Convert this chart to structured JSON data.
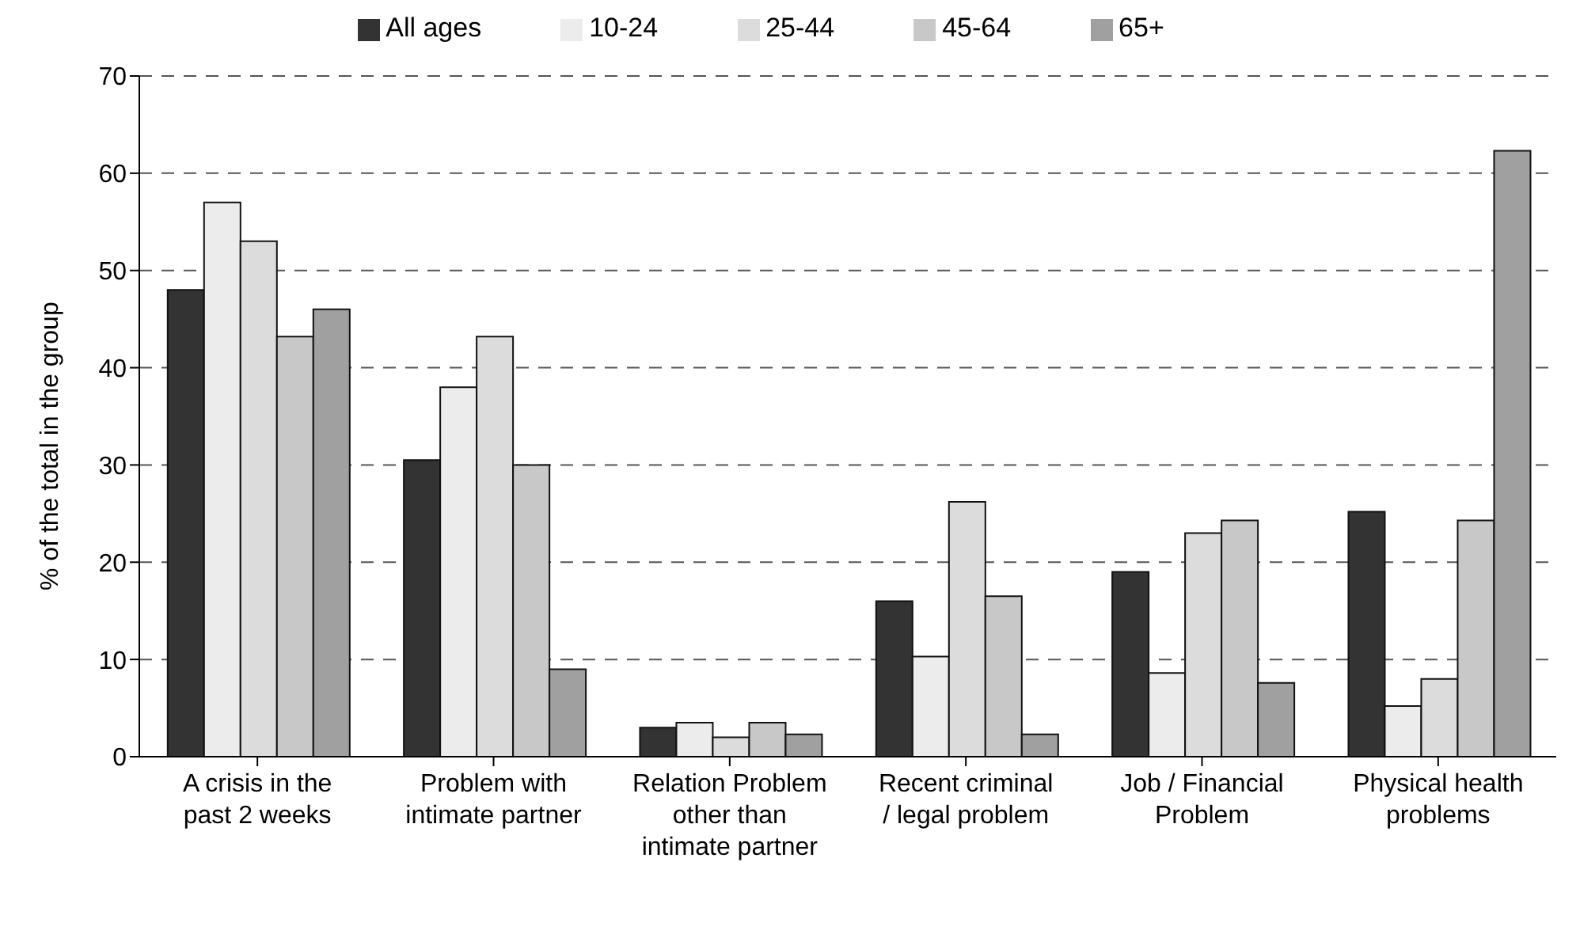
{
  "chart_data": {
    "type": "bar",
    "ylabel": "% of the total in the group",
    "categories": [
      "A crisis in the past 2 weeks",
      "Problem with intimate partner",
      "Relation Problem other than intimate partner",
      "Recent criminal / legal problem",
      "Job / Financial Problem",
      "Physical health problems"
    ],
    "series": [
      {
        "name": "All ages",
        "color": "#333333",
        "values": [
          48,
          30.5,
          3,
          16,
          19,
          25.2
        ]
      },
      {
        "name": "10-24",
        "color": "#ececec",
        "values": [
          57,
          38,
          3.5,
          10.3,
          8.6,
          5.2
        ]
      },
      {
        "name": "25-44",
        "color": "#dcdcdc",
        "values": [
          53,
          43.2,
          2,
          26.2,
          23,
          8
        ]
      },
      {
        "name": "45-64",
        "color": "#c8c8c8",
        "values": [
          43.2,
          30,
          3.5,
          16.5,
          24.3,
          24.3
        ]
      },
      {
        "name": "65+",
        "color": "#a0a0a0",
        "values": [
          46,
          9,
          2.3,
          2.3,
          7.6,
          62.3
        ]
      }
    ],
    "ylim": [
      0,
      70
    ],
    "yticks": [
      0,
      10,
      20,
      30,
      40,
      50,
      60,
      70
    ],
    "grid": "y",
    "legend": "top"
  }
}
